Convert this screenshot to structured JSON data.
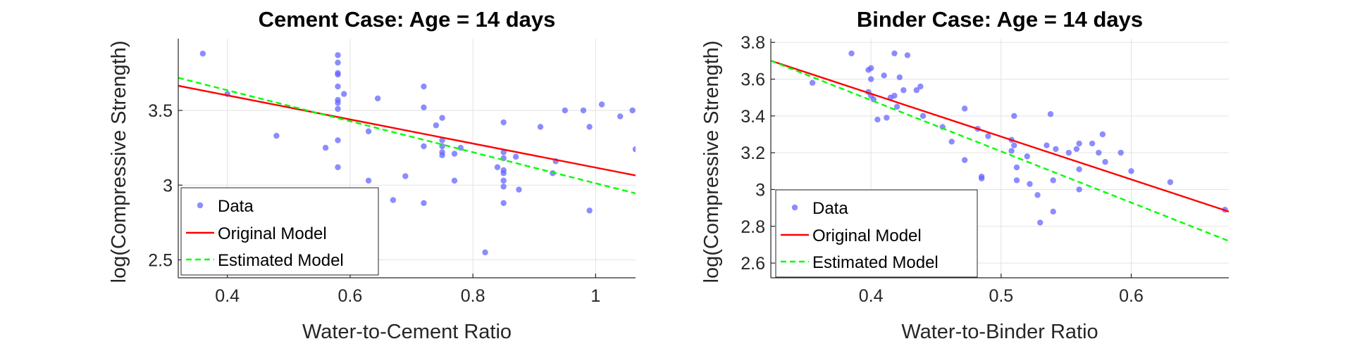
{
  "chart_data": [
    {
      "type": "scatter",
      "title": "Cement Case: Age = 14 days",
      "xlabel": "Water-to-Cement Ratio",
      "ylabel": "log(Compressive Strength)",
      "xlim": [
        0.32,
        1.065
      ],
      "ylim": [
        2.38,
        3.98
      ],
      "xticks": [
        0.4,
        0.6,
        0.8,
        1
      ],
      "xtick_labels": [
        "0.4",
        "0.6",
        "0.8",
        "1"
      ],
      "yticks": [
        2.5,
        3,
        3.5
      ],
      "ytick_labels": [
        "2.5",
        "3",
        "3.5"
      ],
      "grid": true,
      "legend": {
        "location": "bottom-left",
        "entries": [
          "Data",
          "Original Model",
          "Estimated Model"
        ]
      },
      "series": [
        {
          "name": "Data",
          "kind": "scatter",
          "color": "#6666ff",
          "points": [
            [
              0.36,
              3.88
            ],
            [
              0.4,
              3.61
            ],
            [
              0.48,
              3.33
            ],
            [
              0.56,
              3.25
            ],
            [
              0.58,
              3.87
            ],
            [
              0.58,
              3.82
            ],
            [
              0.58,
              3.75
            ],
            [
              0.58,
              3.74
            ],
            [
              0.58,
              3.66
            ],
            [
              0.58,
              3.57
            ],
            [
              0.58,
              3.55
            ],
            [
              0.58,
              3.51
            ],
            [
              0.58,
              3.3
            ],
            [
              0.58,
              3.12
            ],
            [
              0.59,
              3.61
            ],
            [
              0.63,
              3.36
            ],
            [
              0.63,
              3.03
            ],
            [
              0.645,
              3.58
            ],
            [
              0.67,
              2.9
            ],
            [
              0.69,
              3.06
            ],
            [
              0.72,
              3.66
            ],
            [
              0.72,
              3.52
            ],
            [
              0.72,
              3.26
            ],
            [
              0.72,
              2.88
            ],
            [
              0.74,
              3.4
            ],
            [
              0.75,
              3.45
            ],
            [
              0.75,
              3.3
            ],
            [
              0.75,
              3.26
            ],
            [
              0.75,
              3.22
            ],
            [
              0.75,
              3.2
            ],
            [
              0.77,
              3.21
            ],
            [
              0.77,
              3.03
            ],
            [
              0.78,
              3.25
            ],
            [
              0.82,
              2.55
            ],
            [
              0.84,
              3.12
            ],
            [
              0.85,
              3.42
            ],
            [
              0.85,
              3.22
            ],
            [
              0.85,
              3.18
            ],
            [
              0.85,
              3.1
            ],
            [
              0.85,
              3.08
            ],
            [
              0.85,
              3.03
            ],
            [
              0.85,
              2.99
            ],
            [
              0.85,
              2.88
            ],
            [
              0.87,
              3.19
            ],
            [
              0.875,
              2.97
            ],
            [
              0.91,
              3.39
            ],
            [
              0.93,
              3.08
            ],
            [
              0.935,
              3.16
            ],
            [
              0.95,
              3.5
            ],
            [
              0.98,
              3.5
            ],
            [
              0.99,
              3.39
            ],
            [
              0.99,
              2.83
            ],
            [
              1.01,
              3.54
            ],
            [
              1.04,
              3.46
            ],
            [
              1.06,
              3.5
            ],
            [
              1.065,
              3.24
            ]
          ]
        },
        {
          "name": "Original Model",
          "kind": "line",
          "color": "#ff0000",
          "style": "solid",
          "x": [
            0.32,
            1.065
          ],
          "y": [
            3.665,
            3.065
          ]
        },
        {
          "name": "Estimated Model",
          "kind": "line",
          "color": "#00ff00",
          "style": "dashed",
          "x": [
            0.32,
            1.065
          ],
          "y": [
            3.718,
            2.945
          ]
        }
      ]
    },
    {
      "type": "scatter",
      "title": "Binder Case: Age = 14 days",
      "xlabel": "Water-to-Binder Ratio",
      "ylabel": "log(Compressive Strength)",
      "xlim": [
        0.323,
        0.675
      ],
      "ylim": [
        2.52,
        3.82
      ],
      "xticks": [
        0.4,
        0.5,
        0.6
      ],
      "xtick_labels": [
        "0.4",
        "0.5",
        "0.6"
      ],
      "yticks": [
        2.6,
        2.8,
        3,
        3.2,
        3.4,
        3.6,
        3.8
      ],
      "ytick_labels": [
        "2.6",
        "2.8",
        "3",
        "3.2",
        "3.4",
        "3.6",
        "3.8"
      ],
      "grid": true,
      "legend": {
        "location": "bottom-left",
        "entries": [
          "Data",
          "Original Model",
          "Estimated Model"
        ]
      },
      "series": [
        {
          "name": "Data",
          "kind": "scatter",
          "color": "#6666ff",
          "points": [
            [
              0.355,
              3.58
            ],
            [
              0.385,
              3.74
            ],
            [
              0.398,
              3.65
            ],
            [
              0.398,
              3.53
            ],
            [
              0.4,
              3.66
            ],
            [
              0.4,
              3.6
            ],
            [
              0.4,
              3.51
            ],
            [
              0.402,
              3.49
            ],
            [
              0.405,
              3.38
            ],
            [
              0.41,
              3.62
            ],
            [
              0.412,
              3.39
            ],
            [
              0.415,
              3.5
            ],
            [
              0.418,
              3.51
            ],
            [
              0.418,
              3.74
            ],
            [
              0.42,
              3.45
            ],
            [
              0.422,
              3.61
            ],
            [
              0.425,
              3.54
            ],
            [
              0.428,
              3.73
            ],
            [
              0.435,
              3.54
            ],
            [
              0.438,
              3.56
            ],
            [
              0.44,
              3.4
            ],
            [
              0.455,
              3.34
            ],
            [
              0.462,
              3.26
            ],
            [
              0.472,
              3.44
            ],
            [
              0.472,
              3.16
            ],
            [
              0.482,
              3.33
            ],
            [
              0.485,
              3.07
            ],
            [
              0.485,
              3.06
            ],
            [
              0.49,
              3.29
            ],
            [
              0.508,
              3.27
            ],
            [
              0.508,
              3.21
            ],
            [
              0.51,
              3.4
            ],
            [
              0.51,
              3.24
            ],
            [
              0.512,
              3.12
            ],
            [
              0.512,
              3.05
            ],
            [
              0.52,
              3.18
            ],
            [
              0.522,
              3.03
            ],
            [
              0.528,
              2.97
            ],
            [
              0.53,
              2.82
            ],
            [
              0.535,
              3.24
            ],
            [
              0.538,
              3.41
            ],
            [
              0.54,
              3.05
            ],
            [
              0.54,
              2.88
            ],
            [
              0.542,
              3.22
            ],
            [
              0.552,
              3.2
            ],
            [
              0.558,
              3.22
            ],
            [
              0.56,
              3.25
            ],
            [
              0.56,
              3.11
            ],
            [
              0.56,
              3.0
            ],
            [
              0.57,
              3.25
            ],
            [
              0.575,
              3.2
            ],
            [
              0.578,
              3.3
            ],
            [
              0.58,
              3.15
            ],
            [
              0.592,
              3.2
            ],
            [
              0.6,
              3.1
            ],
            [
              0.63,
              3.04
            ],
            [
              0.672,
              2.89
            ]
          ]
        },
        {
          "name": "Original Model",
          "kind": "line",
          "color": "#ff0000",
          "style": "solid",
          "x": [
            0.323,
            0.675
          ],
          "y": [
            3.7,
            2.88
          ]
        },
        {
          "name": "Estimated Model",
          "kind": "line",
          "color": "#00ff00",
          "style": "dashed",
          "x": [
            0.323,
            0.675
          ],
          "y": [
            3.7,
            2.72
          ]
        }
      ]
    }
  ]
}
